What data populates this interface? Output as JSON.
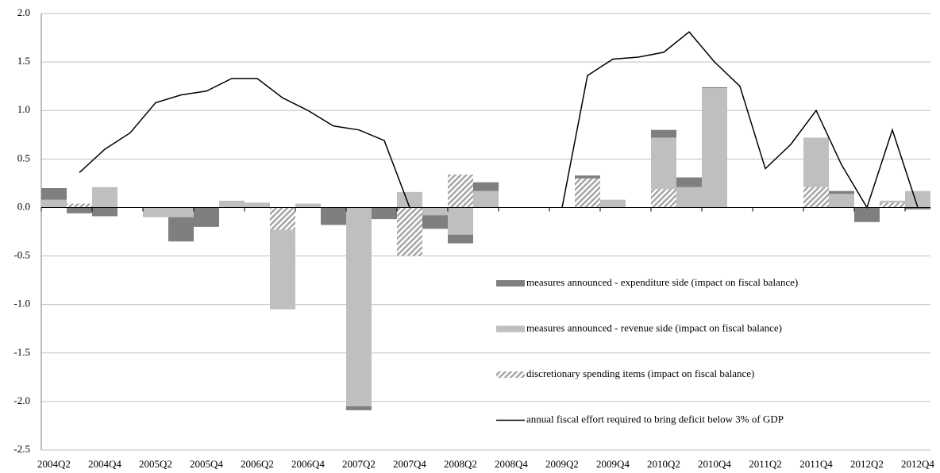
{
  "chart_data": {
    "type": "bar",
    "categories": [
      "2004Q2",
      null,
      "2004Q4",
      null,
      "2005Q2",
      null,
      "2005Q4",
      null,
      "2006Q2",
      null,
      "2006Q4",
      null,
      "2007Q2",
      null,
      "2007Q4",
      null,
      "2008Q2",
      null,
      "2008Q4",
      null,
      "2009Q2",
      null,
      "2009Q4",
      null,
      "2010Q2",
      null,
      "2010Q4",
      null,
      "2011Q2",
      null,
      "2011Q4",
      null,
      "2012Q2",
      null,
      "2012Q4"
    ],
    "series": [
      {
        "name": "measures announced - expenditure side (impact on fiscal balance)",
        "type": "bar",
        "color": "#7f7f7f",
        "values": [
          0.12,
          -0.06,
          -0.09,
          0,
          0,
          -0.25,
          -0.2,
          0,
          0,
          0,
          0,
          -0.18,
          -0.04,
          -0.12,
          0,
          -0.14,
          -0.09,
          0.09,
          0,
          0,
          0,
          0.03,
          0,
          0,
          0.08,
          0.1,
          0.01,
          0,
          0,
          0,
          0,
          0.03,
          -0.15,
          0,
          -0.02
        ]
      },
      {
        "name": "measures announced - revenue side (impact on fiscal balance)",
        "type": "bar",
        "color": "#bfbfbf",
        "values": [
          0.08,
          0,
          0.21,
          0,
          -0.1,
          -0.1,
          0,
          0.07,
          0.05,
          -0.82,
          0.04,
          0,
          -2.05,
          0,
          0.16,
          -0.08,
          -0.28,
          0.17,
          0,
          0,
          0,
          0,
          0.08,
          0,
          0.53,
          0.21,
          1.23,
          0,
          0,
          0,
          0.51,
          0.14,
          0,
          0.02,
          0.17
        ]
      },
      {
        "name": "discretionary spending items (impact on fiscal balance)",
        "type": "bar",
        "color": "#a6a6a6",
        "hatch": true,
        "values": [
          0,
          0.04,
          0,
          0,
          0,
          0,
          0,
          0,
          0,
          -0.23,
          0,
          0,
          0,
          0,
          -0.5,
          0,
          0.34,
          0,
          0,
          0,
          0,
          0.3,
          0,
          0,
          0.19,
          0,
          0,
          0,
          0,
          0,
          0.21,
          0,
          0,
          0.05,
          0
        ]
      },
      {
        "name": "annual fiscal effort required to bring deficit below 3% of GDP",
        "type": "line",
        "color": "#000000",
        "values": [
          null,
          0.36,
          0.6,
          0.77,
          1.08,
          1.16,
          1.2,
          1.33,
          1.33,
          1.13,
          1.0,
          0.84,
          0.8,
          0.69,
          0.0,
          null,
          null,
          null,
          null,
          null,
          0.0,
          1.36,
          1.53,
          1.55,
          1.6,
          1.81,
          1.5,
          1.25,
          0.4,
          0.65,
          1.0,
          0.44,
          0.0,
          0.8,
          0.0
        ]
      }
    ],
    "ylim": [
      -2.5,
      2.0
    ],
    "yticks": [
      {
        "value": 2.0,
        "label": "2.0"
      },
      1.5,
      {
        "value": 1.0,
        "label": "1.0"
      },
      0.5,
      {
        "value": 0.0,
        "label": "0.0"
      },
      -0.5,
      {
        "value": -1.0,
        "label": "-1.0"
      },
      -1.5,
      {
        "value": -2.0,
        "label": "-2.0"
      },
      -2.5
    ],
    "grid": true,
    "legend": "center-right"
  }
}
